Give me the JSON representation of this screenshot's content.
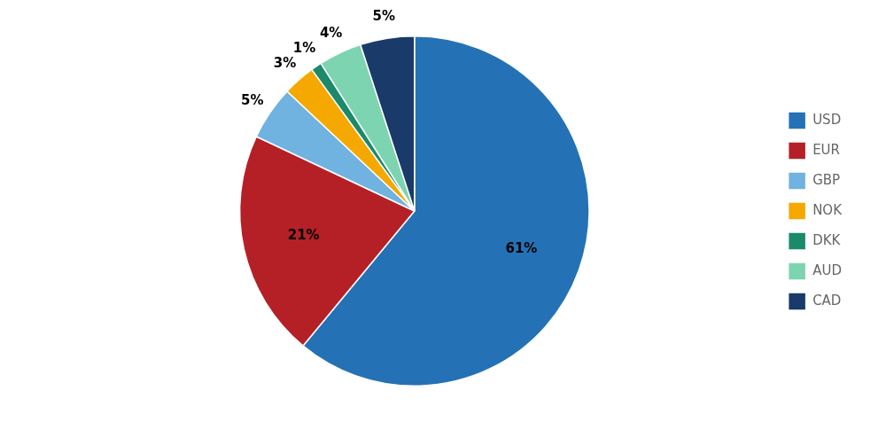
{
  "chart_data": {
    "type": "pie",
    "categories": [
      "USD",
      "EUR",
      "GBP",
      "NOK",
      "DKK",
      "AUD",
      "CAD"
    ],
    "values": [
      61,
      21,
      5,
      3,
      1,
      4,
      5
    ],
    "value_labels": [
      "61%",
      "21%",
      "5%",
      "3%",
      "1%",
      "4%",
      "5%"
    ],
    "colors": [
      "#2472B5",
      "#B52026",
      "#70B2E0",
      "#F5A800",
      "#1A8A6A",
      "#7DD4B0",
      "#1A3A6A"
    ],
    "legend": "right",
    "data_labels": true
  }
}
